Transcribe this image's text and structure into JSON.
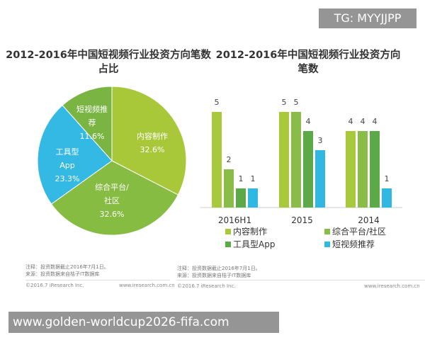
{
  "watermark_top": "TG: MYYJJPP",
  "watermark_bottom": "www.golden-worldcup2026-fifa.com",
  "chart_data": [
    {
      "type": "pie",
      "title": "2012-2016年中国短视频行业投资方向笔数占比",
      "slices": [
        {
          "label": "内容制作",
          "value": 32.6,
          "display": "32.6%",
          "color": "#a8c83a"
        },
        {
          "label": "综合平台/社区",
          "value": 32.6,
          "display": "32.6%",
          "color": "#86bc42"
        },
        {
          "label": "工具型App",
          "value": 23.3,
          "display": "23.3%",
          "color": "#33b9e4"
        },
        {
          "label": "短视频推荐",
          "value": 11.6,
          "display": "11.6%",
          "color": "#7ab544"
        }
      ]
    },
    {
      "type": "bar",
      "title": "2012-2016年中国短视频行业投资方向笔数",
      "categories": [
        "2016H1",
        "2015",
        "2014"
      ],
      "series": [
        {
          "name": "内容制作",
          "values": [
            5,
            5,
            4
          ],
          "color": "#a9c93c"
        },
        {
          "name": "综合平台/社区",
          "values": [
            2,
            5,
            4
          ],
          "color": "#8abd48"
        },
        {
          "name": "工具型App",
          "values": [
            1,
            4,
            4
          ],
          "color": "#5ca947"
        },
        {
          "name": "短视频推荐",
          "values": [
            1,
            3,
            1
          ],
          "color": "#30b8e2"
        }
      ],
      "ylim": [
        0,
        5
      ],
      "legend": "bottom"
    }
  ],
  "notes": {
    "left_1": "注释：投资数据截止2016年7月1日。",
    "left_2": "来源：投资数据来自桔子IT数据库",
    "right_1": "注释：投资数据截止2016年7月1日。",
    "right_2": "来源：投资数据来自桔子IT数据库"
  },
  "footer": {
    "copyright": "©2016.7 iResearch Inc.",
    "url": "www.iresearch.com.cn"
  }
}
